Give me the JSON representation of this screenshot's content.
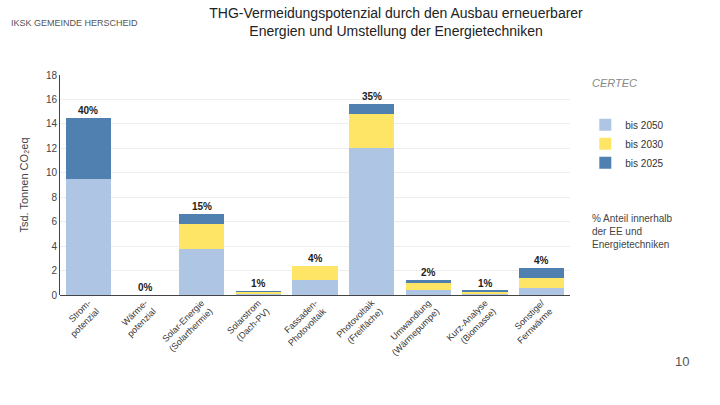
{
  "chart_data": {
    "type": "bar",
    "stacked": true,
    "title": "THG-Vermeidungspotenzial durch den Ausbau erneuerbarer\nEnergien und Umstellung der Energietechniken",
    "ylabel": "Tsd. Tonnen CO₂eq",
    "categories": [
      "Strom-\npotenzial",
      "Wärme-\npotenzial",
      "Solar-Energie\n(Solarthermie)",
      "Solarstrom\n(Dach-PV)",
      "Fassaden-\nPhotovoltaik",
      "Photovoltaik\n(Freifläche)",
      "Umwandlung\n(Wärmepumpe)",
      "Kurz-Analyse\n(Biomasse)",
      "Sonstige/\nFernwärme"
    ],
    "series": [
      {
        "name": "bis 2050",
        "color": "#aec6e4",
        "values": [
          9.5,
          0.0,
          3.8,
          0.15,
          1.2,
          12.0,
          0.4,
          0.1,
          0.6
        ]
      },
      {
        "name": "bis 2030",
        "color": "#ffe566",
        "values": [
          0.0,
          0.0,
          2.0,
          0.1,
          1.2,
          2.8,
          0.6,
          0.15,
          0.8
        ]
      },
      {
        "name": "bis 2025",
        "color": "#5080b0",
        "values": [
          5.0,
          0.0,
          0.8,
          0.05,
          0.0,
          0.8,
          0.2,
          0.1,
          0.8
        ]
      }
    ],
    "ylim": [
      0,
      18
    ],
    "yticks": [
      0,
      2,
      4,
      6,
      8,
      10,
      12,
      14,
      16,
      18
    ],
    "grid": true,
    "legend": "right",
    "annotations": [
      {
        "category": "Strom-\npotenzial",
        "text": "40%"
      },
      {
        "category": "Wärme-\npotenzial",
        "text": "0%"
      },
      {
        "category": "Solar-Energie\n(Solarthermie)",
        "text": "15%"
      },
      {
        "category": "Solarstrom\n(Dach-PV)",
        "text": "1%"
      },
      {
        "category": "Fassaden-\nPhotovoltaik",
        "text": "4%"
      },
      {
        "category": "Photovoltaik\n(Freifläche)",
        "text": "35%"
      },
      {
        "category": "Umwandlung\n(Wärmepumpe)",
        "text": "2%"
      },
      {
        "category": "Kurz-Analyse\n(Biomasse)",
        "text": "1%"
      },
      {
        "category": "Sonstige/\nFernwärme",
        "text": "4%"
      },
      {
        "text": "IKSK GEMEINDE HERSCHEID"
      },
      {
        "text": "CERTEC"
      },
      {
        "text": "% Anteil innerhalb\nder EE und\nEnergietechniken"
      },
      {
        "text": "10"
      }
    ]
  }
}
